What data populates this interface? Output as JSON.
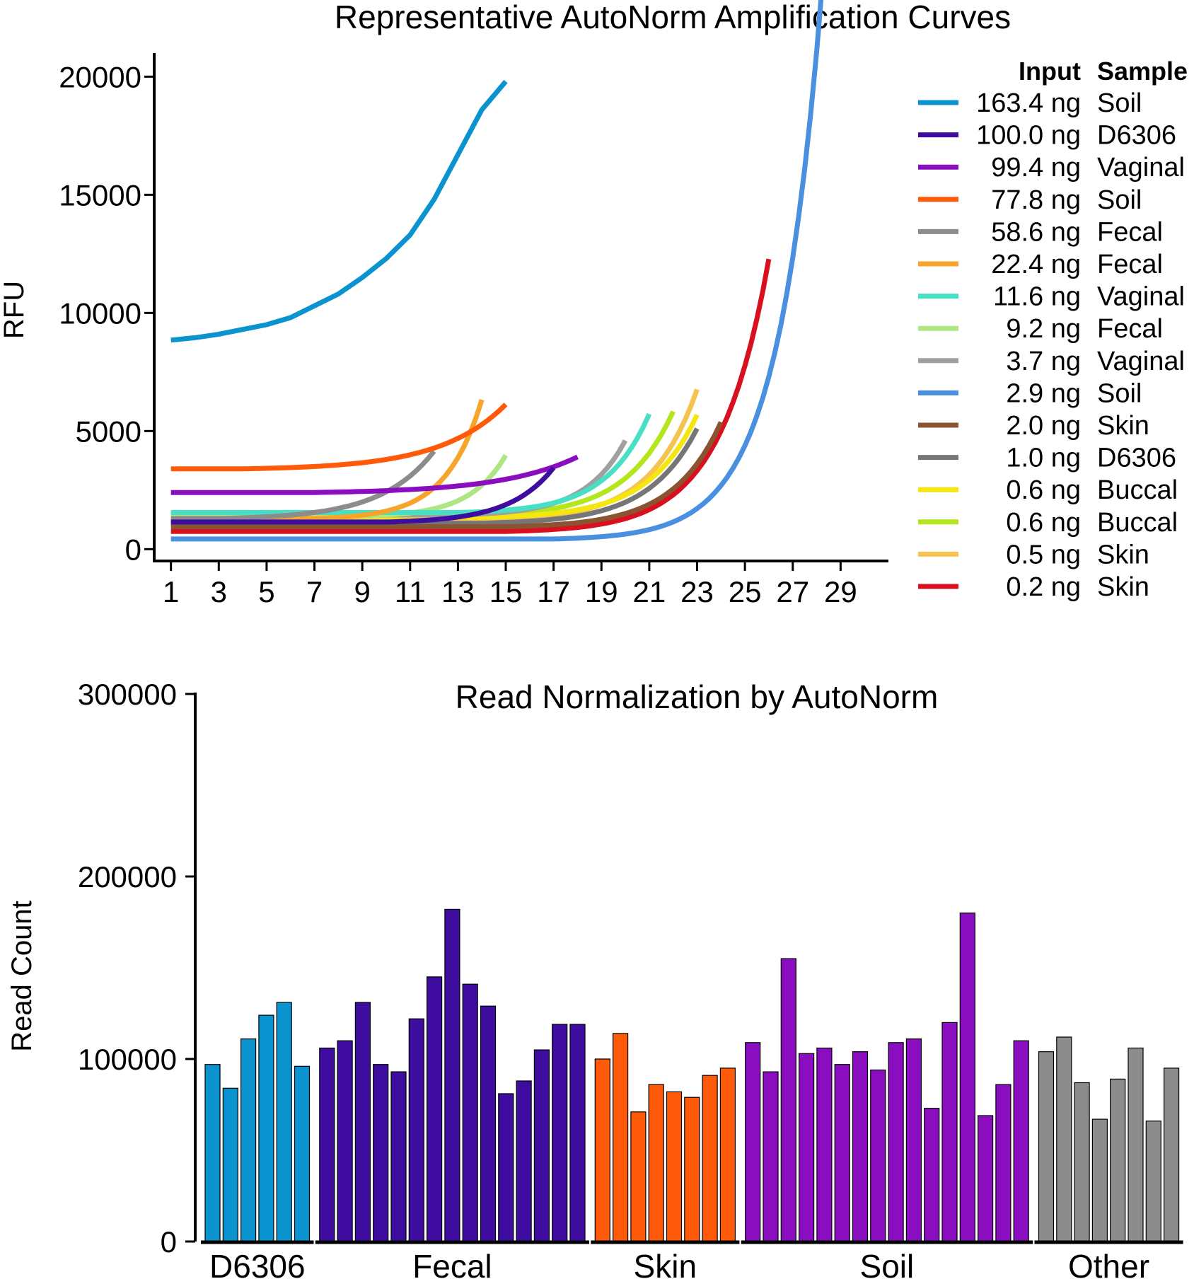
{
  "chart_data": [
    {
      "type": "line",
      "title": "Representative AutoNorm Amplification Curves",
      "xlabel": "",
      "ylabel": "RFU",
      "xlim": [
        0.3,
        31
      ],
      "ylim": [
        -500,
        21000
      ],
      "xticks": [
        1,
        3,
        5,
        7,
        9,
        11,
        13,
        15,
        17,
        19,
        21,
        23,
        25,
        27,
        29
      ],
      "yticks": [
        0,
        5000,
        10000,
        15000,
        20000
      ],
      "grid": false,
      "legend": {
        "position": "right",
        "header_input": "Input",
        "header_sample": "Sample"
      },
      "series": [
        {
          "input": "163.4 ng",
          "sample": "Soil",
          "color": "#0a93cf",
          "base": 8850,
          "start": 4,
          "rate": 0.186,
          "end": 14,
          "points": [
            [
              1,
              8850
            ],
            [
              2,
              8950
            ],
            [
              3,
              9100
            ],
            [
              4,
              9300
            ],
            [
              5,
              9500
            ],
            [
              6,
              9800
            ],
            [
              7,
              10300
            ],
            [
              8,
              10800
            ],
            [
              9,
              11500
            ],
            [
              10,
              12300
            ],
            [
              11,
              13300
            ],
            [
              12,
              14800
            ],
            [
              13,
              16700
            ],
            [
              14,
              18600
            ],
            [
              15,
              19800
            ]
          ]
        },
        {
          "input": "100.0 ng",
          "sample": "D6306",
          "color": "#3e0da0",
          "base": 1150,
          "start": 10,
          "rate": 0.25,
          "end": 17
        },
        {
          "input": "99.4 ng",
          "sample": "Vaginal",
          "color": "#8a0dbf",
          "base": 2400,
          "start": 7,
          "rate": 0.142,
          "end": 18
        },
        {
          "input": "77.8 ng",
          "sample": "Soil",
          "color": "#ff5a0a",
          "base": 3400,
          "start": 4,
          "rate": 0.166,
          "end": 15
        },
        {
          "input": "58.6 ng",
          "sample": "Fecal",
          "color": "#8c8c8c",
          "base": 1300,
          "start": 3,
          "rate": 0.205,
          "end": 12
        },
        {
          "input": "22.4 ng",
          "sample": "Fecal",
          "color": "#f7a52a",
          "base": 1300,
          "start": 7,
          "rate": 0.3,
          "end": 14
        },
        {
          "input": "11.6 ng",
          "sample": "Vaginal",
          "color": "#48e0c4",
          "base": 1550,
          "start": 13,
          "rate": 0.252,
          "end": 21
        },
        {
          "input": "9.2 ng",
          "sample": "Fecal",
          "color": "#aee683",
          "base": 1400,
          "start": 9,
          "rate": 0.3,
          "end": 15
        },
        {
          "input": "3.7 ng",
          "sample": "Vaginal",
          "color": "#a0a0a0",
          "base": 1450,
          "start": 13,
          "rate": 0.27,
          "end": 20
        },
        {
          "input": "2.9 ng",
          "sample": "Soil",
          "color": "#4a90e0",
          "base": 430,
          "start": 17,
          "rate": 0.249,
          "end": 29
        },
        {
          "input": "2.0 ng",
          "sample": "Skin",
          "color": "#8a5430",
          "base": 950,
          "start": 15,
          "rate": 0.227,
          "end": 24
        },
        {
          "input": "1.0 ng",
          "sample": "D6306",
          "color": "#767676",
          "base": 1100,
          "start": 14,
          "rate": 0.222,
          "end": 23
        },
        {
          "input": "0.6 ng",
          "sample": "Buccal",
          "color": "#f5e610",
          "base": 1350,
          "start": 14,
          "rate": 0.226,
          "end": 23
        },
        {
          "input": "0.6 ng",
          "sample": "Buccal",
          "color": "#b4e61e",
          "base": 1400,
          "start": 13,
          "rate": 0.227,
          "end": 22
        },
        {
          "input": "0.5 ng",
          "sample": "Skin",
          "color": "#f5c350",
          "base": 1250,
          "start": 14,
          "rate": 0.238,
          "end": 23
        },
        {
          "input": "0.2 ng",
          "sample": "Skin",
          "color": "#d81020",
          "base": 750,
          "start": 15,
          "rate": 0.225,
          "end": 26
        }
      ]
    },
    {
      "type": "bar",
      "title": "Read Normalization by AutoNorm",
      "xlabel": "",
      "ylabel": "Read Count",
      "ylim": [
        0,
        300000
      ],
      "yticks": [
        0,
        100000,
        200000,
        300000
      ],
      "grid": false,
      "groups": [
        {
          "name": "D6306",
          "color": "#0a93cf",
          "values": [
            97000,
            84000,
            111000,
            124000,
            131000,
            96000
          ]
        },
        {
          "name": "Fecal",
          "color": "#3e0da0",
          "values": [
            106000,
            110000,
            131000,
            97000,
            93000,
            122000,
            145000,
            182000,
            141000,
            129000,
            81000,
            88000,
            105000,
            119000,
            119000
          ]
        },
        {
          "name": "Skin",
          "color": "#ff5a0a",
          "values": [
            100000,
            114000,
            71000,
            86000,
            82000,
            79000,
            91000,
            95000
          ]
        },
        {
          "name": "Soil",
          "color": "#8a0dbf",
          "values": [
            109000,
            93000,
            155000,
            103000,
            106000,
            97000,
            104000,
            94000,
            109000,
            111000,
            73000,
            120000,
            180000,
            69000,
            86000,
            110000
          ]
        },
        {
          "name": "Other",
          "color": "#8c8c8c",
          "values": [
            104000,
            112000,
            87000,
            67000,
            89000,
            106000,
            66000,
            95000
          ]
        }
      ]
    }
  ]
}
